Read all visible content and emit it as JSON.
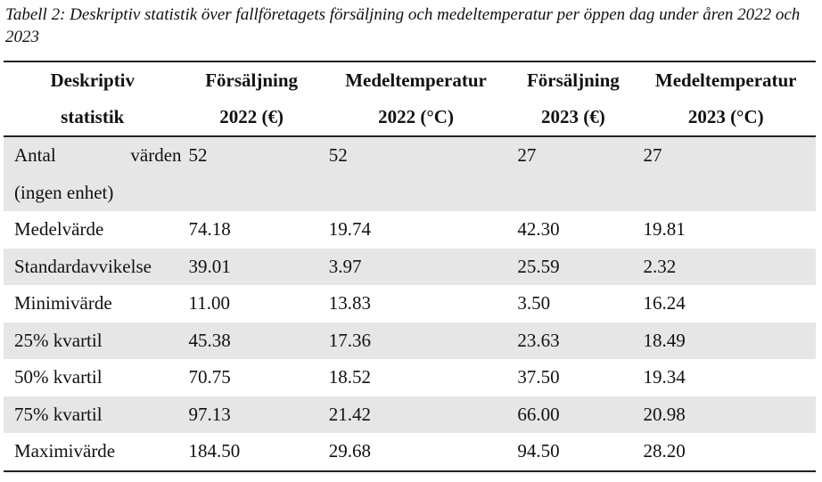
{
  "caption": "Tabell 2: Deskriptiv statistik över fallföretagets försäljning och medeltemperatur per öppen dag under åren 2022 och 2023",
  "headers": [
    {
      "line1": "Deskriptiv",
      "line2": "statistik"
    },
    {
      "line1": "Försäljning",
      "line2": "2022 (€)"
    },
    {
      "line1": "Medeltemperatur",
      "line2": "2022 (°C)"
    },
    {
      "line1": "Försäljning",
      "line2": "2023 (€)"
    },
    {
      "line1": "Medeltemperatur",
      "line2": "2023 (°C)"
    }
  ],
  "first_row": {
    "label_word1": "Antal",
    "label_word2": "värden",
    "label_line2": "(ingen enhet)",
    "values": [
      "52",
      "52",
      "27",
      "27"
    ]
  },
  "rows": [
    {
      "label": "Medelvärde",
      "values": [
        "74.18",
        "19.74",
        "42.30",
        "19.81"
      ]
    },
    {
      "label": "Standardavvikelse",
      "values": [
        "39.01",
        "3.97",
        "25.59",
        "2.32"
      ]
    },
    {
      "label": "Minimivärde",
      "values": [
        "11.00",
        "13.83",
        "3.50",
        "16.24"
      ]
    },
    {
      "label": "25% kvartil",
      "values": [
        "45.38",
        "17.36",
        "23.63",
        "18.49"
      ]
    },
    {
      "label": "50% kvartil",
      "values": [
        "70.75",
        "18.52",
        "37.50",
        "19.34"
      ]
    },
    {
      "label": "75% kvartil",
      "values": [
        "97.13",
        "21.42",
        "66.00",
        "20.98"
      ]
    },
    {
      "label": "Maximivärde",
      "values": [
        "184.50",
        "29.68",
        "94.50",
        "28.20"
      ]
    }
  ]
}
